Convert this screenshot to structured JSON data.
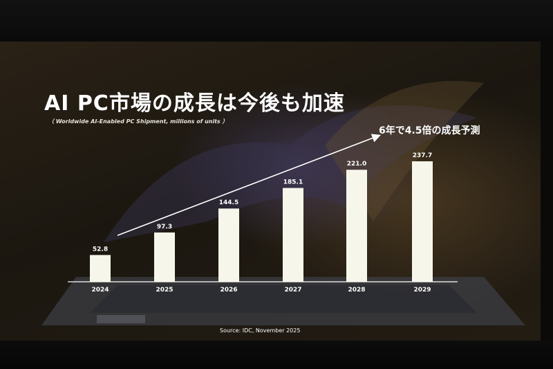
{
  "slide": {
    "title": "AI PC市場の成長は今後も加速",
    "subtitle": "（ Worldwide AI-Enabled PC Shipment, millions of units ）",
    "growth_note": "6年で4.5倍の成長予測",
    "source": "Source: IDC, November 2025"
  },
  "colors": {
    "bar": "#f6f6ea",
    "text": "#ffffff",
    "background": "#1e1912"
  },
  "chart_data": {
    "type": "bar",
    "categories": [
      "2024",
      "2025",
      "2026",
      "2027",
      "2028",
      "2029"
    ],
    "values": [
      52.8,
      97.3,
      144.5,
      185.1,
      221.0,
      237.7
    ],
    "value_labels": [
      "52.8",
      "97.3",
      "144.5",
      "185.1",
      "221.0",
      "237.7"
    ],
    "title": "AI PC市場の成長は今後も加速",
    "subtitle": "（ Worldwide AI-Enabled PC Shipment, millions of units ）",
    "xlabel": "",
    "ylabel": "",
    "ylim": [
      0,
      237.7
    ],
    "grid": false,
    "legend": "none",
    "annotations": [
      "6年で4.5倍の成長予測"
    ]
  }
}
